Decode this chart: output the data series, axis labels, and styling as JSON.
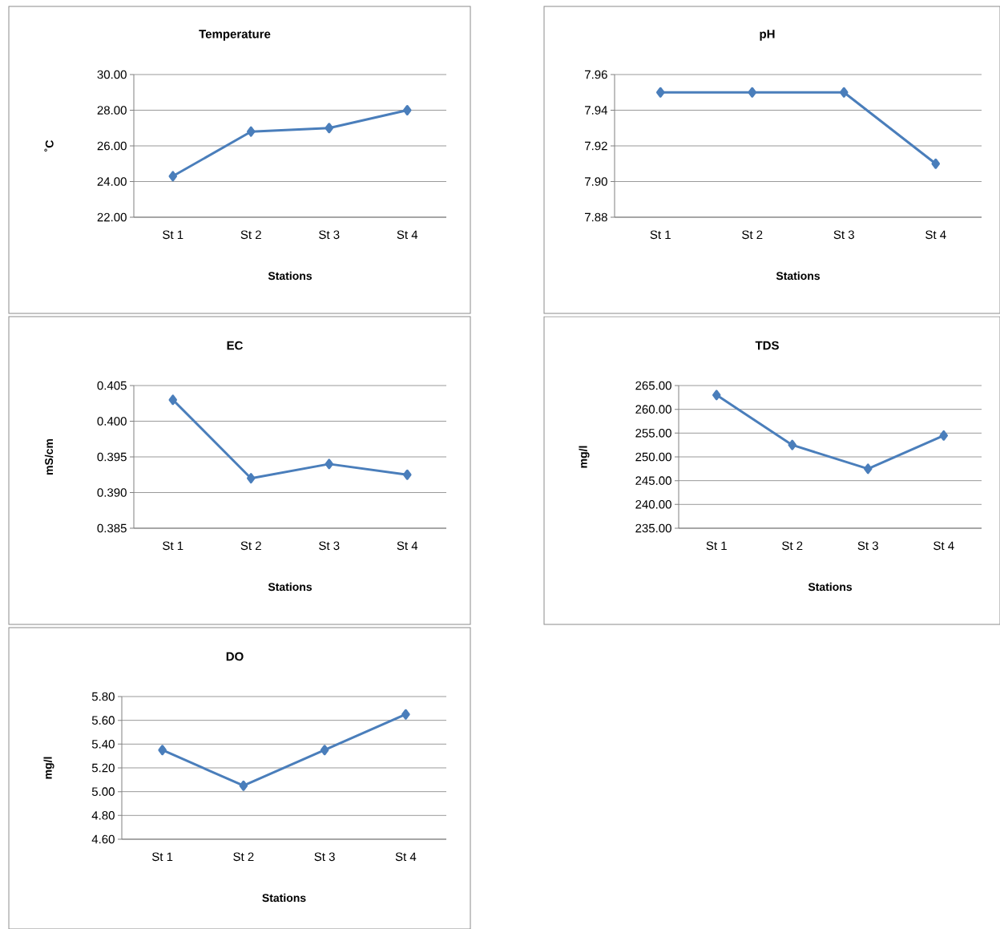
{
  "chart_data": [
    {
      "type": "line",
      "title": "Temperature",
      "xlabel": "Stations",
      "ylabel": "˚C",
      "categories": [
        "St 1",
        "St 2",
        "St 3",
        "St 4"
      ],
      "series": [
        {
          "color": "#4a7ebb",
          "values": [
            24.3,
            26.8,
            27.0,
            28.0
          ]
        }
      ],
      "ylim": [
        22,
        30
      ],
      "yticks": [
        {
          "value": 22,
          "label": "22.00"
        },
        {
          "value": 24,
          "label": "24.00"
        },
        {
          "value": 26,
          "label": "26.00"
        },
        {
          "value": 28,
          "label": "28.00"
        },
        {
          "value": 30,
          "label": "30.00"
        }
      ],
      "grid": "y",
      "marker": "diamond"
    },
    {
      "type": "line",
      "title": "pH",
      "xlabel": "Stations",
      "categories": [
        "St 1",
        "St 2",
        "St 3",
        "St 4"
      ],
      "series": [
        {
          "color": "#4a7ebb",
          "values": [
            7.95,
            7.95,
            7.95,
            7.91
          ]
        }
      ],
      "ylim": [
        7.88,
        7.96
      ],
      "yticks": [
        {
          "value": 7.88,
          "label": "7.88"
        },
        {
          "value": 7.9,
          "label": "7.90"
        },
        {
          "value": 7.92,
          "label": "7.92"
        },
        {
          "value": 7.94,
          "label": "7.94"
        },
        {
          "value": 7.96,
          "label": "7.96"
        }
      ],
      "grid": "y",
      "marker": "diamond"
    },
    {
      "type": "line",
      "title": "EC",
      "xlabel": "Stations",
      "ylabel": "mS/cm",
      "categories": [
        "St 1",
        "St 2",
        "St 3",
        "St 4"
      ],
      "series": [
        {
          "color": "#4a7ebb",
          "values": [
            0.403,
            0.392,
            0.394,
            0.3925
          ]
        }
      ],
      "ylim": [
        0.385,
        0.405
      ],
      "yticks": [
        {
          "value": 0.385,
          "label": "0.385"
        },
        {
          "value": 0.39,
          "label": "0.390"
        },
        {
          "value": 0.395,
          "label": "0.395"
        },
        {
          "value": 0.4,
          "label": "0.400"
        },
        {
          "value": 0.405,
          "label": "0.405"
        }
      ],
      "grid": "y",
      "marker": "diamond"
    },
    {
      "type": "line",
      "title": "TDS",
      "xlabel": "Stations",
      "ylabel": "mg/l",
      "categories": [
        "St 1",
        "St 2",
        "St 3",
        "St 4"
      ],
      "series": [
        {
          "color": "#4a7ebb",
          "values": [
            263.0,
            252.5,
            247.5,
            254.5
          ]
        }
      ],
      "ylim": [
        235,
        265
      ],
      "yticks": [
        {
          "value": 235,
          "label": "235.00"
        },
        {
          "value": 240,
          "label": "240.00"
        },
        {
          "value": 245,
          "label": "245.00"
        },
        {
          "value": 250,
          "label": "250.00"
        },
        {
          "value": 255,
          "label": "255.00"
        },
        {
          "value": 260,
          "label": "260.00"
        },
        {
          "value": 265,
          "label": "265.00"
        }
      ],
      "grid": "y",
      "marker": "diamond"
    },
    {
      "type": "line",
      "title": "DO",
      "xlabel": "Stations",
      "ylabel": "mg/l",
      "categories": [
        "St 1",
        "St 2",
        "St 3",
        "St 4"
      ],
      "series": [
        {
          "color": "#4a7ebb",
          "values": [
            5.35,
            5.05,
            5.35,
            5.65
          ]
        }
      ],
      "ylim": [
        4.6,
        5.8
      ],
      "yticks": [
        {
          "value": 4.6,
          "label": "4.60"
        },
        {
          "value": 4.8,
          "label": "4.80"
        },
        {
          "value": 5.0,
          "label": "5.00"
        },
        {
          "value": 5.2,
          "label": "5.20"
        },
        {
          "value": 5.4,
          "label": "5.40"
        },
        {
          "value": 5.6,
          "label": "5.60"
        },
        {
          "value": 5.8,
          "label": "5.80"
        }
      ],
      "grid": "y",
      "marker": "diamond"
    }
  ]
}
